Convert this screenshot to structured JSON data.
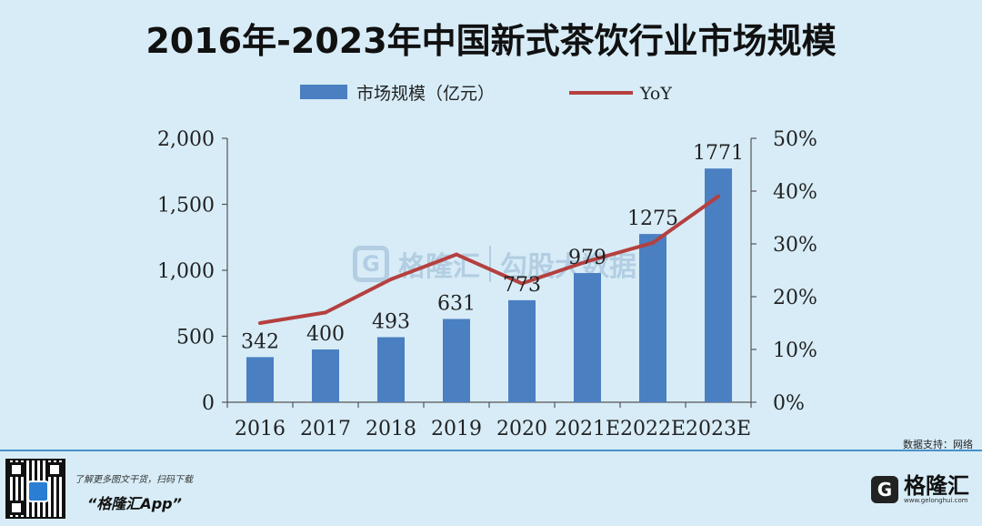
{
  "title": "2016年-2023年中国新式茶饮行业市场规模",
  "chart_data": {
    "type": "bar",
    "categories": [
      "2016",
      "2017",
      "2018",
      "2019",
      "2020",
      "2021E",
      "2022E",
      "2023E"
    ],
    "series": [
      {
        "name": "市场规模（亿元）",
        "type": "bar",
        "axis": "left",
        "values": [
          342,
          400,
          493,
          631,
          773,
          979,
          1275,
          1771
        ],
        "data_labels": [
          "342",
          "400",
          "493",
          "631",
          "773",
          "979",
          "1275",
          "1771"
        ],
        "color": "#4a7fc2"
      },
      {
        "name": "YoY",
        "type": "line",
        "axis": "right",
        "values": [
          15,
          17,
          23.3,
          28,
          22.5,
          26.7,
          30.2,
          39
        ],
        "color": "#b5403f"
      }
    ],
    "y_left": {
      "lim": [
        0,
        2000
      ],
      "ticks": [
        0,
        500,
        1000,
        1500,
        2000
      ],
      "tick_labels": [
        "0",
        "500",
        "1,000",
        "1,500",
        "2,000"
      ]
    },
    "y_right": {
      "lim": [
        0,
        50
      ],
      "ticks": [
        0,
        10,
        20,
        30,
        40,
        50
      ],
      "tick_labels": [
        "0%",
        "10%",
        "20%",
        "30%",
        "40%",
        "50%"
      ]
    },
    "legend_position": "top-center",
    "grid": false
  },
  "watermark": {
    "brand": "格隆汇",
    "secondary": "勾股大数据",
    "box_letter": "G"
  },
  "source": "数据支持：网络",
  "footer": {
    "promo_line": "了解更多图文干货，扫码下载",
    "app_name": "“格隆汇App”",
    "brand": "格隆汇",
    "brand_url": "www.gelonghui.com",
    "logo_letter": "G"
  }
}
